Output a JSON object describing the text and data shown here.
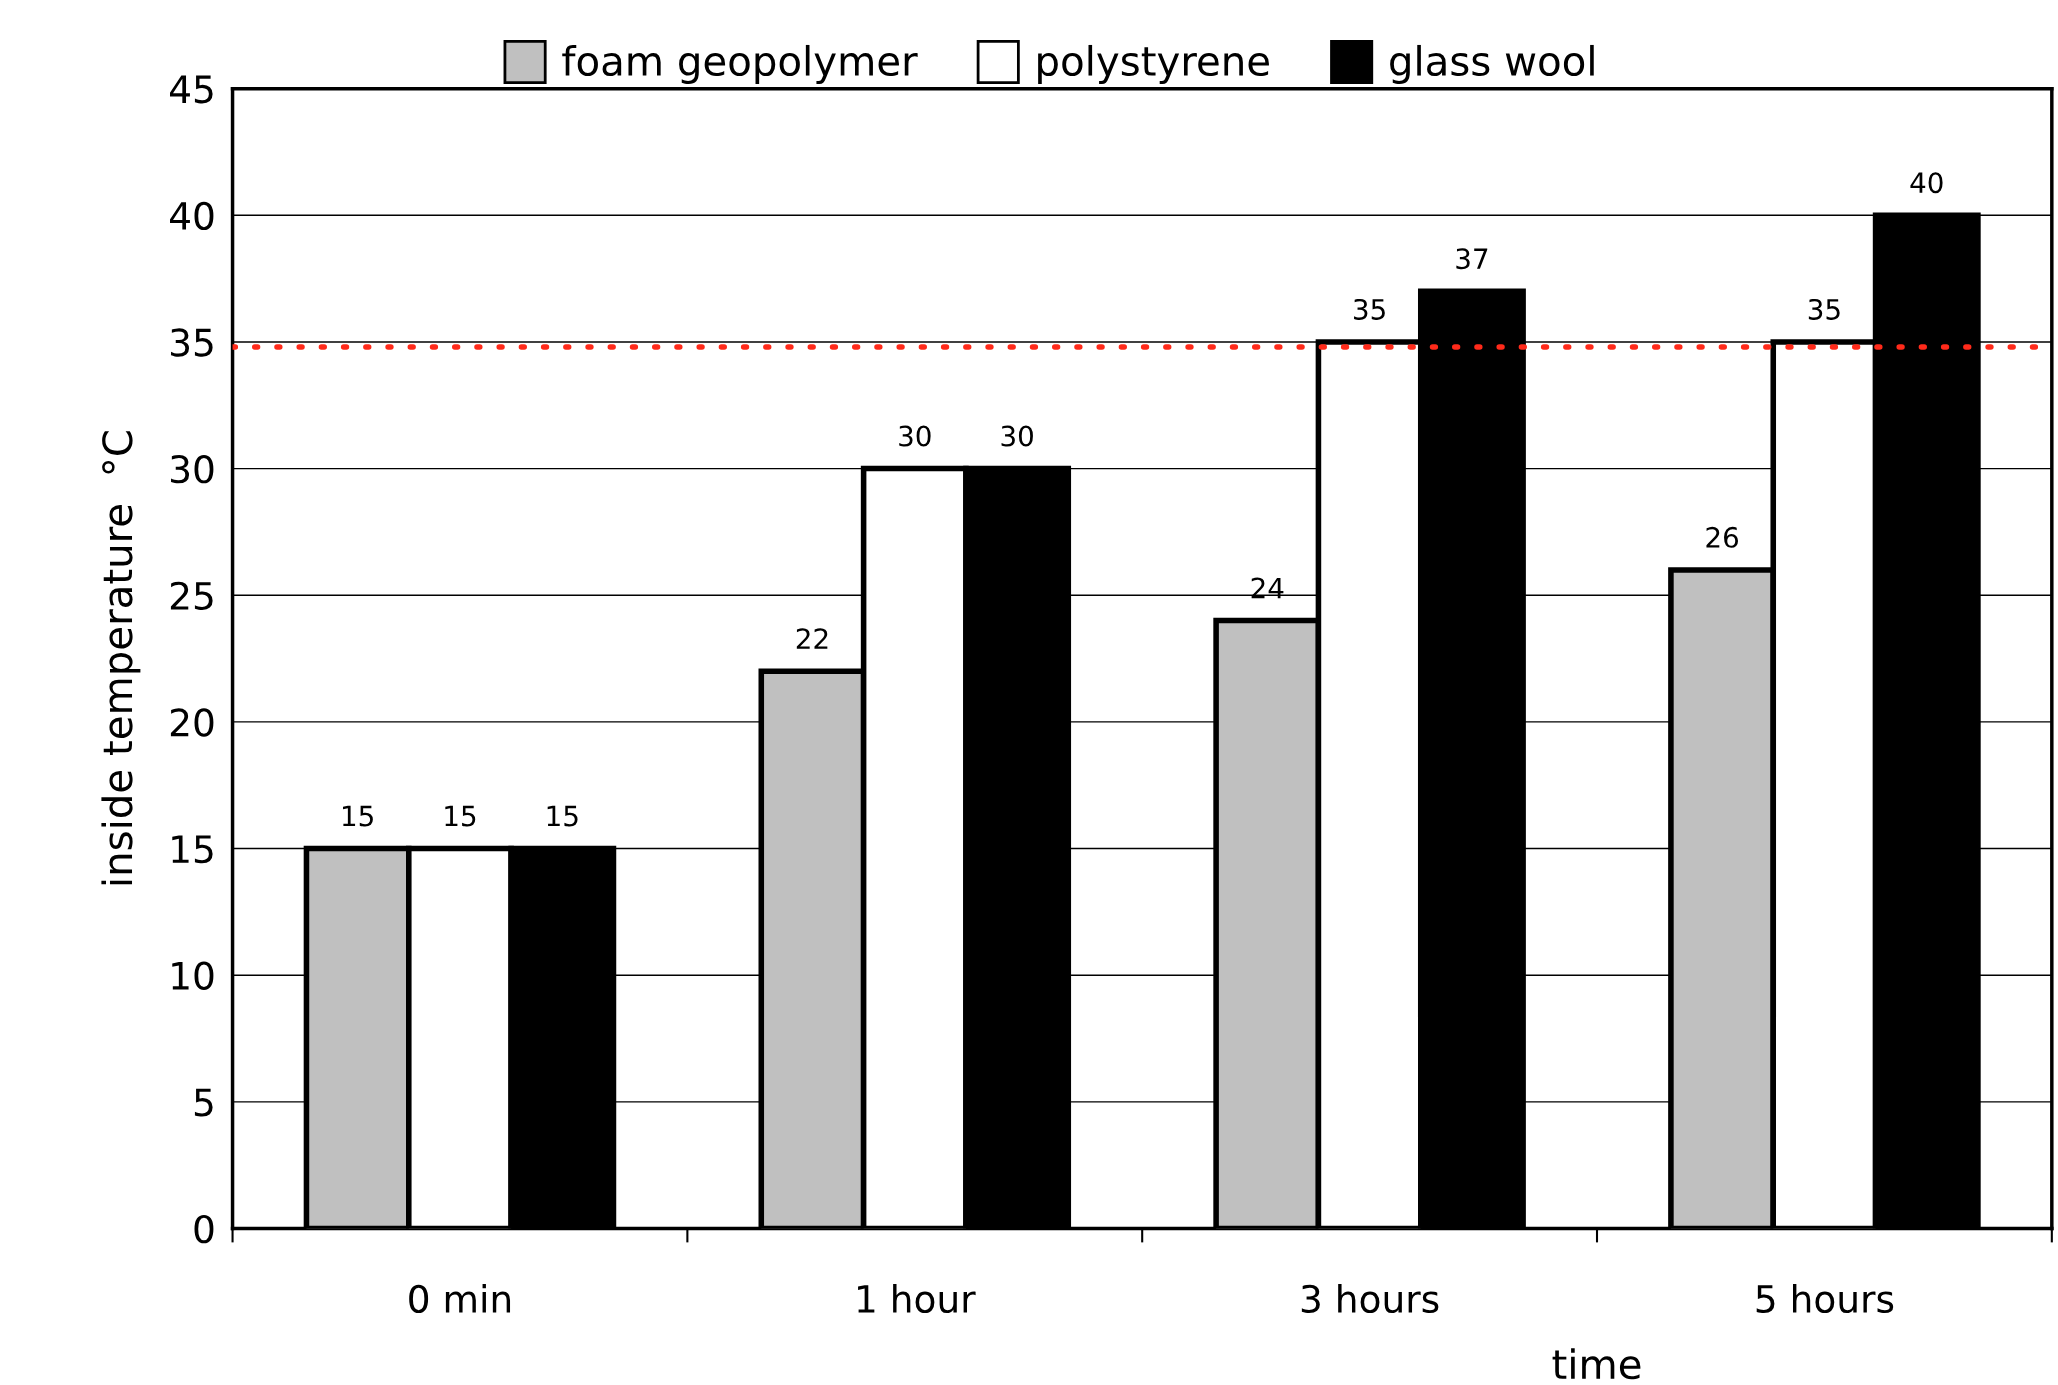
{
  "chart_data": {
    "type": "bar",
    "xlabel": "time",
    "ylabel": "inside temperature  °C",
    "categories": [
      "0 min",
      "1 hour",
      "3 hours",
      "5 hours"
    ],
    "series": [
      {
        "name": "foam geopolymer",
        "color": "#c0c0c0",
        "values": [
          15,
          22,
          24,
          26
        ]
      },
      {
        "name": "polystyrene",
        "color": "#ffffff",
        "values": [
          15,
          30,
          35,
          35
        ]
      },
      {
        "name": "glass wool",
        "color": "#000000",
        "values": [
          15,
          30,
          37,
          40
        ]
      }
    ],
    "ylim": [
      0,
      45
    ],
    "yticks": [
      0,
      5,
      10,
      15,
      20,
      25,
      30,
      35,
      40,
      45
    ],
    "grid": "y",
    "legend": "top",
    "data_labels": true,
    "ref_lines": [
      {
        "axis": "y",
        "value": 34.8,
        "color": "#ff2a1a",
        "line_style": "dotted"
      }
    ]
  }
}
